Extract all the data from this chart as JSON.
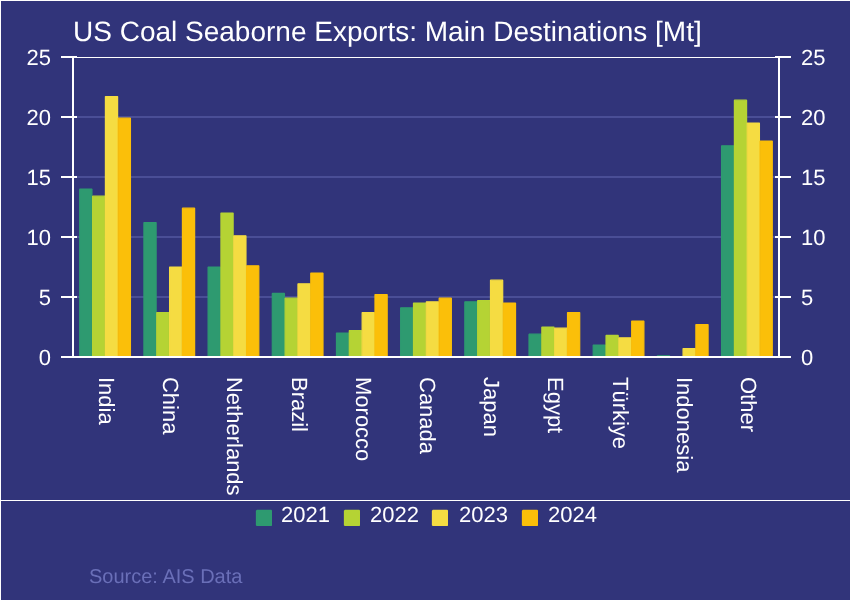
{
  "chart_data": {
    "type": "bar",
    "title": "US Coal Seaborne Exports: Main Destinations [Mt]",
    "categories": [
      "India",
      "China",
      "Netherlands",
      "Brazil",
      "Morocco",
      "Canada",
      "Japan",
      "Egypt",
      "Türkiye",
      "Indonesia",
      "Other"
    ],
    "series": [
      {
        "name": "2021",
        "color": "#2e9a70",
        "values": [
          14,
          11.2,
          7.5,
          5.3,
          2,
          4.1,
          4.6,
          1.9,
          1,
          0.1,
          17.6
        ]
      },
      {
        "name": "2022",
        "color": "#b5d334",
        "values": [
          13.4,
          3.7,
          12,
          4.9,
          2.2,
          4.5,
          4.7,
          2.5,
          1.8,
          0,
          21.4
        ]
      },
      {
        "name": "2023",
        "color": "#f5dc42",
        "values": [
          21.7,
          7.5,
          10.1,
          6.1,
          3.7,
          4.6,
          6.4,
          2.4,
          1.6,
          0.7,
          19.5
        ]
      },
      {
        "name": "2024",
        "color": "#fbbf09",
        "values": [
          19.9,
          12.4,
          7.6,
          7,
          5.2,
          4.9,
          4.5,
          3.7,
          3,
          2.7,
          18
        ]
      }
    ],
    "ylim": [
      0,
      25
    ],
    "yticks": [
      0,
      5,
      10,
      15,
      20,
      25
    ],
    "y2lim": [
      0,
      25
    ],
    "y2ticks": [
      0,
      5,
      10,
      15,
      20,
      25
    ],
    "grid": "y",
    "legend": "bottom",
    "annotations": [
      "Source: AIS Data"
    ]
  }
}
